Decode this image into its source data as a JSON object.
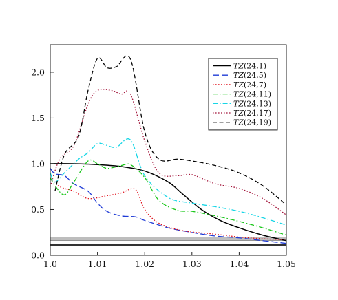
{
  "chart_data": {
    "type": "line",
    "title": "",
    "xlabel": "",
    "ylabel": "",
    "xlim": [
      1.0,
      1.05
    ],
    "ylim": [
      0.0,
      2.3
    ],
    "xticks": [
      1.0,
      1.01,
      1.02,
      1.03,
      1.04,
      1.05
    ],
    "xtick_labels": [
      "1.0",
      "1.01",
      "1.02",
      "1.03",
      "1.04",
      "1.05"
    ],
    "yticks": [
      0.0,
      0.5,
      1.0,
      1.5,
      2.0
    ],
    "ytick_labels": [
      "0.0",
      "0.5",
      "1.0",
      "1.5",
      "2.0"
    ],
    "grid": false,
    "legend_position": "top-right",
    "band": {
      "y_low": 0.16,
      "y_high": 0.2,
      "line_y": 0.11
    },
    "series": [
      {
        "name": "TZ(24,1)",
        "color": "#000000",
        "dash": "solid",
        "x": [
          1.0,
          1.005,
          1.01,
          1.015,
          1.02,
          1.025,
          1.028,
          1.032,
          1.036,
          1.04,
          1.045,
          1.05
        ],
        "y": [
          1.0,
          1.0,
          0.99,
          0.97,
          0.92,
          0.8,
          0.67,
          0.5,
          0.38,
          0.3,
          0.22,
          0.16
        ]
      },
      {
        "name": "TZ(24,5)",
        "color": "#1f3bd6",
        "dash": "long-dash",
        "x": [
          1.0,
          1.001,
          1.003,
          1.005,
          1.008,
          1.01,
          1.012,
          1.015,
          1.018,
          1.02,
          1.025,
          1.03,
          1.035,
          1.04,
          1.045,
          1.05
        ],
        "y": [
          0.95,
          0.89,
          0.87,
          0.78,
          0.7,
          0.57,
          0.48,
          0.43,
          0.42,
          0.38,
          0.3,
          0.25,
          0.21,
          0.19,
          0.16,
          0.13
        ]
      },
      {
        "name": "TZ(24,7)",
        "color": "#e0141e",
        "dash": "dotted",
        "x": [
          1.0,
          1.002,
          1.005,
          1.008,
          1.012,
          1.015,
          1.018,
          1.02,
          1.023,
          1.028,
          1.035,
          1.04,
          1.045,
          1.05
        ],
        "y": [
          0.85,
          0.75,
          0.7,
          0.62,
          0.65,
          0.68,
          0.72,
          0.5,
          0.35,
          0.27,
          0.23,
          0.2,
          0.18,
          0.17
        ]
      },
      {
        "name": "TZ(24,11)",
        "color": "#18c618",
        "dash": "dash-dot",
        "x": [
          1.0,
          1.001,
          1.003,
          1.005,
          1.008,
          1.01,
          1.012,
          1.015,
          1.017,
          1.02,
          1.023,
          1.027,
          1.03,
          1.035,
          1.04,
          1.045,
          1.05
        ],
        "y": [
          0.85,
          0.76,
          0.66,
          0.8,
          1.03,
          1.0,
          0.95,
          0.98,
          0.99,
          0.85,
          0.6,
          0.49,
          0.48,
          0.43,
          0.37,
          0.3,
          0.22
        ]
      },
      {
        "name": "TZ(24,13)",
        "color": "#18d6e6",
        "dash": "dash-dot",
        "x": [
          1.0,
          1.001,
          1.003,
          1.006,
          1.008,
          1.01,
          1.012,
          1.014,
          1.017,
          1.02,
          1.025,
          1.03,
          1.035,
          1.04,
          1.045,
          1.05
        ],
        "y": [
          0.9,
          0.8,
          0.9,
          1.05,
          1.12,
          1.22,
          1.2,
          1.18,
          1.26,
          0.87,
          0.63,
          0.57,
          0.53,
          0.48,
          0.41,
          0.33
        ]
      },
      {
        "name": "TZ(24,17)",
        "color": "#a2143a",
        "dash": "dotted",
        "x": [
          1.0,
          1.002,
          1.005,
          1.008,
          1.01,
          1.013,
          1.015,
          1.017,
          1.02,
          1.023,
          1.027,
          1.03,
          1.035,
          1.04,
          1.045,
          1.05
        ],
        "y": [
          0.75,
          1.05,
          1.2,
          1.65,
          1.8,
          1.8,
          1.76,
          1.76,
          1.25,
          0.9,
          0.87,
          0.88,
          0.78,
          0.73,
          0.62,
          0.44
        ]
      },
      {
        "name": "TZ(24,19)",
        "color": "#000000",
        "dash": "dashed",
        "x": [
          1.001,
          1.003,
          1.006,
          1.008,
          1.01,
          1.012,
          1.014,
          1.017,
          1.02,
          1.023,
          1.027,
          1.03,
          1.035,
          1.04,
          1.045,
          1.05
        ],
        "y": [
          0.7,
          1.1,
          1.3,
          1.8,
          2.15,
          2.05,
          2.06,
          2.14,
          1.35,
          1.05,
          1.05,
          1.03,
          0.98,
          0.9,
          0.76,
          0.55
        ]
      }
    ]
  }
}
